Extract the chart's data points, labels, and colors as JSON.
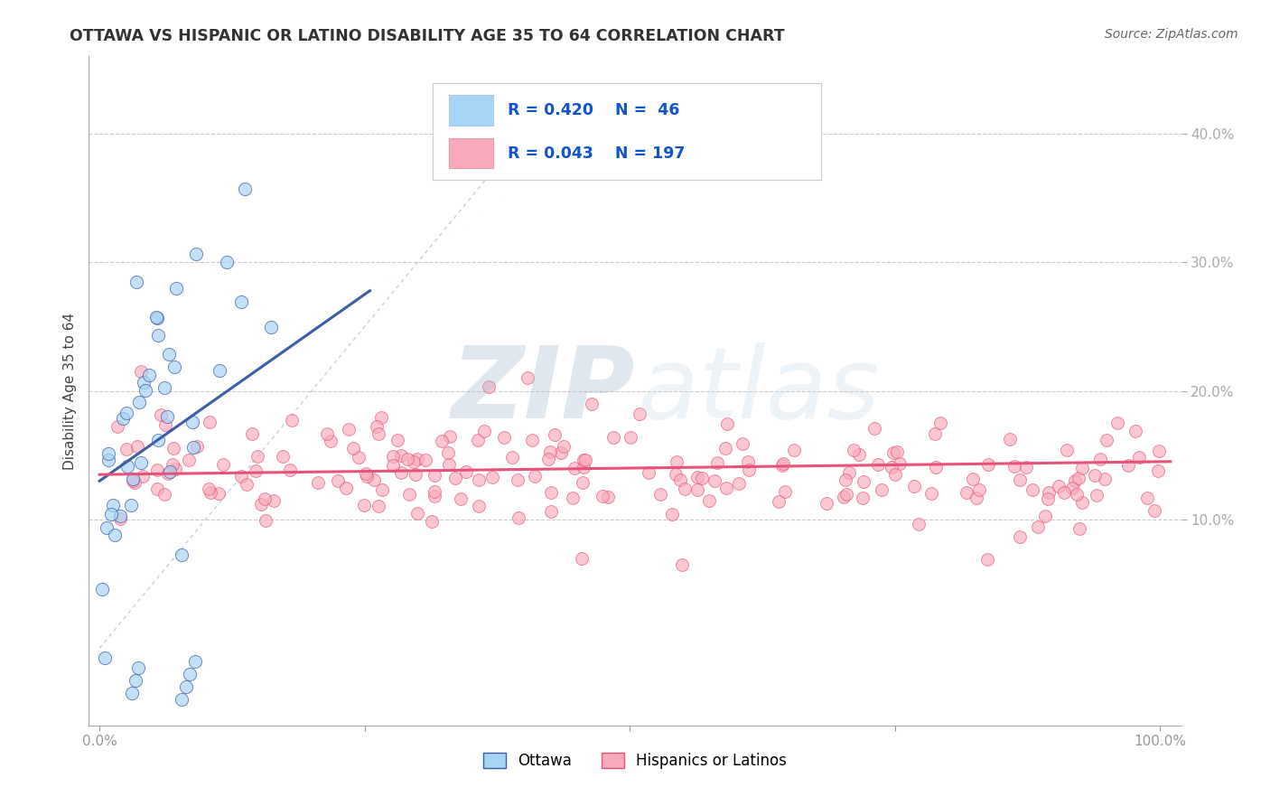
{
  "title": "OTTAWA VS HISPANIC OR LATINO DISABILITY AGE 35 TO 64 CORRELATION CHART",
  "source": "Source: ZipAtlas.com",
  "ylabel": "Disability Age 35 to 64",
  "color_ottawa": "#A8D4F5",
  "color_hispanic": "#F9AABB",
  "color_line_ottawa": "#3B5EA6",
  "color_line_hispanic": "#E8527A",
  "color_diag": "#B8CCE4",
  "xlim": [
    -0.01,
    1.02
  ],
  "ylim": [
    -0.06,
    0.46
  ],
  "xticks": [
    0.0,
    0.25,
    0.5,
    0.75,
    1.0
  ],
  "xtick_labels": [
    "0.0%",
    "",
    "",
    "",
    "100.0%"
  ],
  "yticks": [
    0.1,
    0.2,
    0.3,
    0.4
  ],
  "ytick_labels": [
    "10.0%",
    "20.0%",
    "30.0%",
    "40.0%"
  ],
  "legend_r1": "R = 0.420",
  "legend_n1": "N =  46",
  "legend_r2": "R = 0.043",
  "legend_n2": "N = 197",
  "label_ottawa": "Ottawa",
  "label_hispanic": "Hispanics or Latinos",
  "watermark_zip": "ZIP",
  "watermark_atlas": "atlas"
}
